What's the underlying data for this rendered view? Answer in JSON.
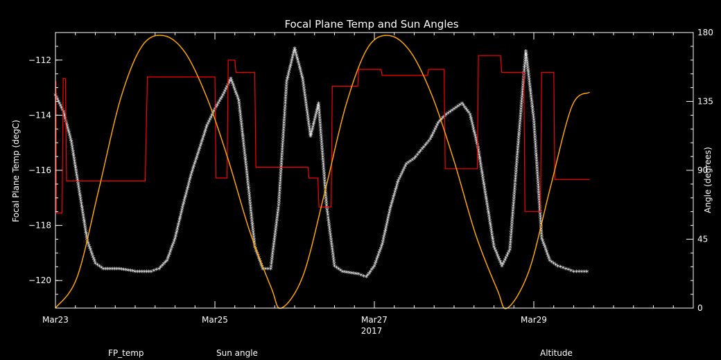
{
  "chart_data": {
    "type": "line",
    "title": "Focal Plane Temp and Sun Angles",
    "xlabel": "2017",
    "ylabel": "Focal Plane Temp (degC)",
    "y2label": "Angle (degrees)",
    "xlim": [
      "2017-03-23T00:00",
      "2017-03-31T00:00"
    ],
    "xticks": [
      {
        "value": "2017-03-23",
        "label": "Mar23"
      },
      {
        "value": "2017-03-25",
        "label": "Mar25"
      },
      {
        "value": "2017-03-27",
        "label": "Mar27"
      },
      {
        "value": "2017-03-29",
        "label": "Mar29"
      }
    ],
    "ylim": [
      -121,
      -111
    ],
    "yticks": [
      -112,
      -114,
      -116,
      -118,
      -120
    ],
    "y2lim": [
      0,
      180
    ],
    "y2ticks": [
      0,
      45,
      90,
      135,
      180
    ],
    "grid": false,
    "colors": {
      "background": "#000000",
      "axes": "#ffffff",
      "fp_temp": "#ffffff",
      "sun_angle": "#ff0000",
      "altitude": "#ffa500"
    },
    "legend": [
      {
        "label": "FP_temp",
        "color": "#ffffff"
      },
      {
        "label": "Sun angle",
        "color": "#ff0000"
      },
      {
        "label": "Altitude",
        "color": "#ffa500"
      }
    ],
    "series": [
      {
        "name": "FP_temp",
        "axis": "left",
        "style": "asterisk",
        "points": [
          [
            "2017-03-23T00:00",
            -113.3
          ],
          [
            "2017-03-23T02:24",
            -113.9
          ],
          [
            "2017-03-23T04:48",
            -115.0
          ],
          [
            "2017-03-23T07:12",
            -116.8
          ],
          [
            "2017-03-23T09:36",
            -118.6
          ],
          [
            "2017-03-23T12:00",
            -119.4
          ],
          [
            "2017-03-23T14:24",
            -119.6
          ],
          [
            "2017-03-23T19:12",
            -119.6
          ],
          [
            "2017-03-24T00:00",
            -119.7
          ],
          [
            "2017-03-24T04:48",
            -119.7
          ],
          [
            "2017-03-24T07:12",
            -119.6
          ],
          [
            "2017-03-24T09:36",
            -119.3
          ],
          [
            "2017-03-24T12:00",
            -118.5
          ],
          [
            "2017-03-24T14:24",
            -117.3
          ],
          [
            "2017-03-24T16:48",
            -116.2
          ],
          [
            "2017-03-24T19:12",
            -115.3
          ],
          [
            "2017-03-24T21:36",
            -114.4
          ],
          [
            "2017-03-25T00:00",
            -113.8
          ],
          [
            "2017-03-25T02:24",
            -113.3
          ],
          [
            "2017-03-25T04:48",
            -112.7
          ],
          [
            "2017-03-25T07:12",
            -113.5
          ],
          [
            "2017-03-25T09:36",
            -116.1
          ],
          [
            "2017-03-25T12:00",
            -118.8
          ],
          [
            "2017-03-25T14:24",
            -119.6
          ],
          [
            "2017-03-25T16:48",
            -119.6
          ],
          [
            "2017-03-25T19:12",
            -117.3
          ],
          [
            "2017-03-25T21:36",
            -112.8
          ],
          [
            "2017-03-26T00:00",
            -111.6
          ],
          [
            "2017-03-26T02:24",
            -112.7
          ],
          [
            "2017-03-26T04:48",
            -114.8
          ],
          [
            "2017-03-26T07:12",
            -113.6
          ],
          [
            "2017-03-26T09:36",
            -117.3
          ],
          [
            "2017-03-26T12:00",
            -119.5
          ],
          [
            "2017-03-26T14:24",
            -119.7
          ],
          [
            "2017-03-26T19:12",
            -119.8
          ],
          [
            "2017-03-26T21:36",
            -119.9
          ],
          [
            "2017-03-27T00:00",
            -119.5
          ],
          [
            "2017-03-27T02:24",
            -118.7
          ],
          [
            "2017-03-27T04:48",
            -117.4
          ],
          [
            "2017-03-27T07:12",
            -116.4
          ],
          [
            "2017-03-27T09:36",
            -115.8
          ],
          [
            "2017-03-27T12:00",
            -115.6
          ],
          [
            "2017-03-27T16:48",
            -114.9
          ],
          [
            "2017-03-27T19:12",
            -114.3
          ],
          [
            "2017-03-27T21:36",
            -114.0
          ],
          [
            "2017-03-28T00:00",
            -113.8
          ],
          [
            "2017-03-28T02:24",
            -113.6
          ],
          [
            "2017-03-28T04:48",
            -114.0
          ],
          [
            "2017-03-28T07:12",
            -115.2
          ],
          [
            "2017-03-28T09:36",
            -117.0
          ],
          [
            "2017-03-28T12:00",
            -118.8
          ],
          [
            "2017-03-28T14:24",
            -119.5
          ],
          [
            "2017-03-28T16:48",
            -118.9
          ],
          [
            "2017-03-28T19:12",
            -115.2
          ],
          [
            "2017-03-28T21:36",
            -111.7
          ],
          [
            "2017-03-29T00:00",
            -114.2
          ],
          [
            "2017-03-29T02:24",
            -118.5
          ],
          [
            "2017-03-29T04:48",
            -119.3
          ],
          [
            "2017-03-29T07:12",
            -119.5
          ],
          [
            "2017-03-29T09:36",
            -119.6
          ],
          [
            "2017-03-29T12:00",
            -119.7
          ],
          [
            "2017-03-29T14:24",
            -119.7
          ],
          [
            "2017-03-29T16:48",
            -119.7
          ]
        ]
      },
      {
        "name": "Sun angle",
        "axis": "right",
        "style": "step",
        "points": [
          [
            "2017-03-23T00:00",
            148
          ],
          [
            "2017-03-23T00:10",
            148
          ],
          [
            "2017-03-23T00:20",
            62
          ],
          [
            "2017-03-23T02:00",
            62
          ],
          [
            "2017-03-23T02:20",
            150
          ],
          [
            "2017-03-23T03:00",
            150
          ],
          [
            "2017-03-23T03:20",
            83
          ],
          [
            "2017-03-24T03:00",
            83
          ],
          [
            "2017-03-24T03:40",
            151
          ],
          [
            "2017-03-25T00:00",
            151
          ],
          [
            "2017-03-25T00:20",
            85
          ],
          [
            "2017-03-25T03:40",
            85
          ],
          [
            "2017-03-25T04:00",
            162
          ],
          [
            "2017-03-25T06:00",
            162
          ],
          [
            "2017-03-25T06:20",
            154
          ],
          [
            "2017-03-25T12:00",
            154
          ],
          [
            "2017-03-25T12:20",
            92
          ],
          [
            "2017-03-26T04:00",
            92
          ],
          [
            "2017-03-26T04:20",
            85
          ],
          [
            "2017-03-26T07:00",
            85
          ],
          [
            "2017-03-26T07:20",
            66
          ],
          [
            "2017-03-26T11:00",
            66
          ],
          [
            "2017-03-26T11:20",
            145
          ],
          [
            "2017-03-26T19:00",
            145
          ],
          [
            "2017-03-26T19:20",
            156
          ],
          [
            "2017-03-27T02:00",
            156
          ],
          [
            "2017-03-27T02:20",
            152
          ],
          [
            "2017-03-27T16:00",
            152
          ],
          [
            "2017-03-27T16:20",
            156
          ],
          [
            "2017-03-27T21:00",
            156
          ],
          [
            "2017-03-27T21:20",
            91
          ],
          [
            "2017-03-28T07:00",
            91
          ],
          [
            "2017-03-28T07:20",
            165
          ],
          [
            "2017-03-28T14:00",
            165
          ],
          [
            "2017-03-28T14:20",
            154
          ],
          [
            "2017-03-28T21:00",
            154
          ],
          [
            "2017-03-28T21:20",
            63
          ],
          [
            "2017-03-29T02:00",
            63
          ],
          [
            "2017-03-29T02:20",
            154
          ],
          [
            "2017-03-29T06:00",
            154
          ],
          [
            "2017-03-29T06:20",
            84
          ],
          [
            "2017-03-29T16:48",
            84
          ]
        ]
      },
      {
        "name": "Altitude",
        "axis": "right",
        "style": "line",
        "points": [
          [
            "2017-03-23T00:00",
            0
          ],
          [
            "2017-03-23T06:30",
            20
          ],
          [
            "2017-03-23T13:00",
            77
          ],
          [
            "2017-03-23T19:30",
            136
          ],
          [
            "2017-03-24T02:00",
            171
          ],
          [
            "2017-03-24T08:30",
            178
          ],
          [
            "2017-03-24T15:00",
            167
          ],
          [
            "2017-03-24T21:30",
            138
          ],
          [
            "2017-03-25T04:00",
            97
          ],
          [
            "2017-03-25T10:30",
            50
          ],
          [
            "2017-03-25T17:00",
            13
          ],
          [
            "2017-03-25T20:00",
            0
          ],
          [
            "2017-03-26T02:30",
            21
          ],
          [
            "2017-03-26T09:00",
            75
          ],
          [
            "2017-03-26T15:30",
            133
          ],
          [
            "2017-03-26T22:00",
            170
          ],
          [
            "2017-03-27T04:30",
            178
          ],
          [
            "2017-03-27T11:00",
            167
          ],
          [
            "2017-03-27T17:30",
            138
          ],
          [
            "2017-03-28T00:00",
            96
          ],
          [
            "2017-03-28T06:30",
            48
          ],
          [
            "2017-03-28T13:00",
            12
          ],
          [
            "2017-03-28T16:00",
            0
          ],
          [
            "2017-03-28T22:30",
            24
          ],
          [
            "2017-03-29T05:00",
            79
          ],
          [
            "2017-03-29T11:30",
            132
          ],
          [
            "2017-03-29T16:48",
            141
          ]
        ]
      }
    ]
  }
}
